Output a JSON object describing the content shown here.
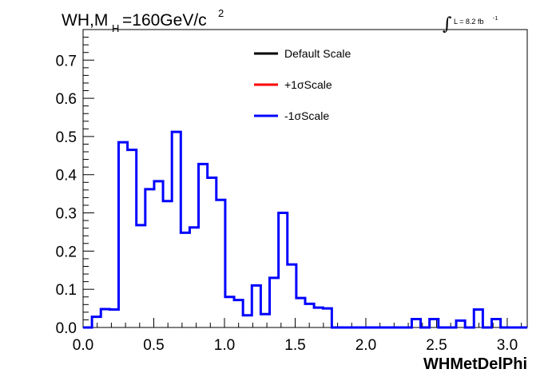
{
  "title": {
    "prefix": "WH,M",
    "subscript": "H",
    "middle": "=160GeV/c",
    "superscript": "2"
  },
  "luminosity": {
    "symbol": "∫",
    "text": "L = 8.2 fb",
    "superscript": "-1"
  },
  "chart_data": {
    "type": "line",
    "xlabel": "WHMetDelPhi",
    "ylabel": "",
    "xlim": [
      0,
      3.1416
    ],
    "ylim": [
      0,
      0.78
    ],
    "xticks": [
      "0.0",
      "0.5",
      "1.0",
      "1.5",
      "2.0",
      "2.5",
      "3.0"
    ],
    "yticks": [
      "0.0",
      "0.1",
      "0.2",
      "0.3",
      "0.4",
      "0.5",
      "0.6",
      "0.7"
    ],
    "bin_width": 0.06283,
    "legend": [
      {
        "name": "Default Scale",
        "color": "#000000"
      },
      {
        "name": "+1σScale",
        "color": "#ff0000"
      },
      {
        "name": "-1σScale",
        "color": "#0000ff"
      }
    ],
    "series": [
      {
        "name": "-1σScale",
        "color": "#0000ff",
        "values": [
          0.0,
          0.028,
          0.048,
          0.047,
          0.485,
          0.465,
          0.268,
          0.362,
          0.383,
          0.331,
          0.512,
          0.248,
          0.262,
          0.428,
          0.392,
          0.334,
          0.08,
          0.072,
          0.032,
          0.11,
          0.035,
          0.13,
          0.3,
          0.165,
          0.077,
          0.062,
          0.052,
          0.05,
          0.0,
          0.0,
          0.0,
          0.0,
          0.0,
          0.0,
          0.0,
          0.0,
          0.0,
          0.022,
          0.0,
          0.022,
          0.0,
          0.0,
          0.018,
          0.0,
          0.047,
          0.0,
          0.022,
          0.0,
          0.0,
          0.0
        ]
      }
    ]
  }
}
